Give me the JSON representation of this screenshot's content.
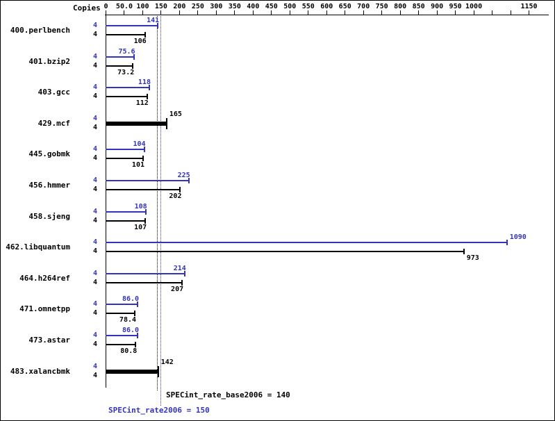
{
  "chart_data": {
    "type": "bar",
    "orientation": "horizontal",
    "copies_header": "Copies",
    "colors": {
      "peak": "#3333bb",
      "base": "#000000",
      "background": "#ffffff"
    },
    "x_axis": {
      "min": 0,
      "max": 1150,
      "tick_values": [
        0,
        50,
        100,
        150,
        200,
        250,
        300,
        350,
        400,
        450,
        500,
        550,
        600,
        650,
        700,
        750,
        800,
        850,
        900,
        950,
        1000,
        1050,
        1100,
        1150
      ],
      "tick_labels": [
        "0",
        "50.0",
        "100",
        "150",
        "200",
        "250",
        "300",
        "350",
        "400",
        "450",
        "500",
        "550",
        "600",
        "650",
        "700",
        "750",
        "800",
        "850",
        "900",
        "950",
        "1000",
        "",
        "",
        "1150"
      ]
    },
    "series": [
      "peak",
      "base"
    ],
    "benchmarks": [
      {
        "name": "400.perlbench",
        "copies": "4",
        "peak": 141,
        "base": 106,
        "peak_label": "141",
        "base_label": "106"
      },
      {
        "name": "401.bzip2",
        "copies": "4",
        "peak": 75.6,
        "base": 73.2,
        "peak_label": "75.6",
        "base_label": "73.2"
      },
      {
        "name": "403.gcc",
        "copies": "4",
        "peak": 118,
        "base": 112,
        "peak_label": "118",
        "base_label": "112"
      },
      {
        "name": "429.mcf",
        "copies": "4",
        "single": true,
        "value": 165,
        "value_label": "165"
      },
      {
        "name": "445.gobmk",
        "copies": "4",
        "peak": 104,
        "base": 101,
        "peak_label": "104",
        "base_label": "101"
      },
      {
        "name": "456.hmmer",
        "copies": "4",
        "peak": 225,
        "base": 202,
        "peak_label": "225",
        "base_label": "202"
      },
      {
        "name": "458.sjeng",
        "copies": "4",
        "peak": 108,
        "base": 107,
        "peak_label": "108",
        "base_label": "107"
      },
      {
        "name": "462.libquantum",
        "copies": "4",
        "peak": 1090,
        "base": 973,
        "peak_label": "1090",
        "base_label": "973",
        "value_label_position": "after_end"
      },
      {
        "name": "464.h264ref",
        "copies": "4",
        "peak": 214,
        "base": 207,
        "peak_label": "214",
        "base_label": "207"
      },
      {
        "name": "471.omnetpp",
        "copies": "4",
        "peak": 86.0,
        "base": 78.4,
        "peak_label": "86.0",
        "base_label": "78.4"
      },
      {
        "name": "473.astar",
        "copies": "4",
        "peak": 86.0,
        "base": 80.8,
        "peak_label": "86.0",
        "base_label": "80.8"
      },
      {
        "name": "483.xalancbmk",
        "copies": "4",
        "single": true,
        "value": 142,
        "value_label": "142"
      }
    ],
    "reference_lines": [
      {
        "text": "SPECint_rate_base2006 = 140",
        "value": 140,
        "color": "#000000"
      },
      {
        "text": "SPECint_rate2006 = 150",
        "value": 150,
        "color": "#3333bb"
      }
    ],
    "grid": false,
    "legend": "none"
  }
}
